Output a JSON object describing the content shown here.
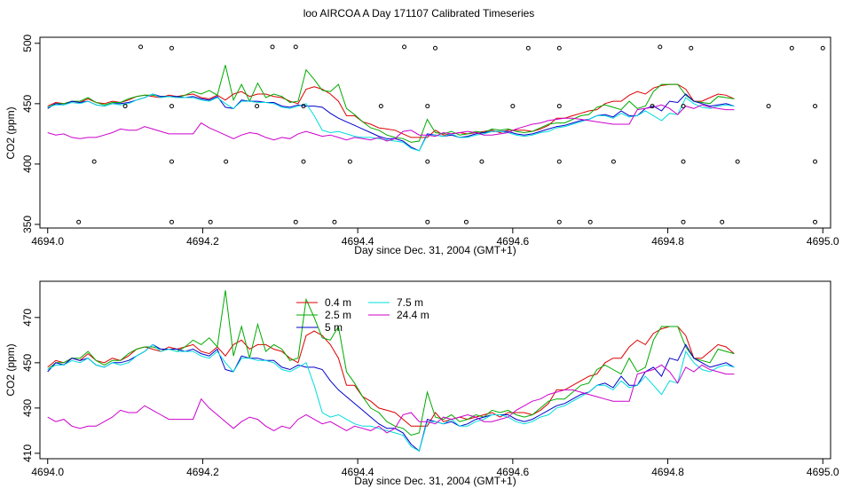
{
  "title": "loo AIRCOA A  Day 171107  Calibrated Timeseries",
  "chart_data": [
    {
      "type": "line",
      "panel": "top",
      "xlabel": "Day since Dec. 31, 2004 (GMT+1)",
      "ylabel": "CO2 (ppm)",
      "xlim": [
        4693.99,
        4695.01
      ],
      "ylim": [
        347,
        505
      ],
      "xticks": [
        4694.0,
        4694.2,
        4694.4,
        4694.6,
        4694.8,
        4695.0
      ],
      "xtick_labels": [
        "4694.0",
        "4694.2",
        "4694.4",
        "4694.6",
        "4694.8",
        "4695.0"
      ],
      "yticks": [
        350,
        400,
        450,
        500
      ],
      "ytick_labels": [
        "350",
        "400",
        "450",
        "500"
      ],
      "x_start": 4694.0,
      "x_step": 0.01042,
      "colors": {
        "0.4 m": "#dd0000",
        "2.5 m": "#00aa00",
        "5 m": "#0000cc",
        "7.5 m": "#00dddd",
        "24.4 m": "#cc00cc"
      },
      "series": [
        {
          "name": "0.4 m",
          "values": [
            448,
            451,
            450,
            452,
            451,
            454,
            451,
            450,
            452,
            451,
            453,
            456,
            457,
            456,
            455,
            457,
            456,
            457,
            458,
            455,
            454,
            457,
            453,
            458,
            460,
            456,
            458,
            458,
            456,
            455,
            452,
            450,
            462,
            464,
            462,
            458,
            452,
            440,
            440,
            435,
            433,
            430,
            429,
            428,
            425,
            422,
            422,
            422,
            428,
            424,
            425,
            426,
            425,
            426,
            427,
            428,
            426,
            428,
            428,
            428,
            427,
            429,
            432,
            438,
            438,
            440,
            442,
            444,
            445,
            450,
            452,
            452,
            457,
            460,
            458,
            463,
            465,
            466,
            466,
            462,
            452,
            452,
            455,
            458,
            457,
            454
          ]
        },
        {
          "name": "2.5 m",
          "values": [
            447,
            450,
            450,
            452,
            452,
            455,
            451,
            449,
            451,
            451,
            454,
            456,
            457,
            457,
            456,
            456,
            455,
            457,
            460,
            458,
            461,
            457,
            482,
            453,
            466,
            452,
            467,
            455,
            458,
            456,
            451,
            452,
            478,
            470,
            461,
            460,
            466,
            446,
            441,
            435,
            430,
            428,
            424,
            422,
            421,
            418,
            419,
            437,
            426,
            425,
            427,
            424,
            425,
            427,
            426,
            429,
            428,
            429,
            427,
            426,
            427,
            430,
            433,
            434,
            434,
            437,
            440,
            441,
            447,
            449,
            447,
            445,
            452,
            446,
            448,
            460,
            466,
            466,
            466,
            457,
            452,
            451,
            450,
            456,
            455,
            454
          ]
        },
        {
          "name": "5 m",
          "values": [
            446,
            450,
            449,
            452,
            451,
            452,
            449,
            448,
            450,
            450,
            451,
            453,
            455,
            458,
            456,
            456,
            456,
            455,
            456,
            454,
            453,
            456,
            447,
            446,
            453,
            452,
            452,
            451,
            451,
            448,
            447,
            449,
            448,
            448,
            447,
            442,
            438,
            435,
            432,
            429,
            426,
            423,
            421,
            421,
            419,
            414,
            411,
            425,
            424,
            423,
            424,
            422,
            423,
            425,
            426,
            427,
            427,
            427,
            425,
            424,
            425,
            427,
            429,
            431,
            432,
            434,
            436,
            437,
            440,
            441,
            439,
            444,
            440,
            440,
            446,
            448,
            444,
            452,
            451,
            458,
            452,
            450,
            448,
            449,
            450,
            448
          ]
        },
        {
          "name": "7.5 m",
          "values": [
            447,
            449,
            449,
            451,
            450,
            452,
            449,
            448,
            450,
            449,
            450,
            453,
            455,
            458,
            455,
            456,
            455,
            455,
            455,
            453,
            452,
            455,
            450,
            446,
            452,
            452,
            451,
            451,
            450,
            447,
            446,
            448,
            450,
            440,
            428,
            426,
            427,
            425,
            423,
            422,
            422,
            421,
            420,
            419,
            418,
            413,
            411,
            424,
            424,
            423,
            425,
            422,
            422,
            424,
            425,
            427,
            427,
            426,
            424,
            423,
            424,
            426,
            427,
            430,
            431,
            433,
            435,
            437,
            440,
            440,
            438,
            442,
            439,
            440,
            444,
            440,
            436,
            442,
            441,
            455,
            450,
            447,
            446,
            448,
            449,
            448
          ]
        },
        {
          "name": "24.4 m",
          "values": [
            426,
            424,
            425,
            422,
            421,
            422,
            422,
            424,
            426,
            429,
            428,
            428,
            431,
            429,
            427,
            425,
            425,
            425,
            425,
            434,
            430,
            427,
            424,
            421,
            424,
            426,
            425,
            422,
            420,
            422,
            421,
            425,
            427,
            425,
            423,
            424,
            422,
            420,
            422,
            421,
            420,
            422,
            419,
            421,
            427,
            428,
            424,
            424,
            423,
            426,
            425,
            426,
            427,
            426,
            424,
            424,
            425,
            426,
            429,
            431,
            433,
            434,
            436,
            437,
            438,
            438,
            437,
            436,
            435,
            434,
            433,
            433,
            433,
            445,
            446,
            447,
            449,
            446,
            441,
            448,
            446,
            449,
            447,
            446,
            445,
            445
          ]
        }
      ],
      "points": {
        "x": [
          4694.04,
          4694.06,
          4694.1,
          4694.12,
          4694.16,
          4694.16,
          4694.16,
          4694.16,
          4694.21,
          4694.23,
          4694.27,
          4694.29,
          4694.32,
          4694.32,
          4694.33,
          4694.33,
          4694.37,
          4694.39,
          4694.43,
          4694.46,
          4694.49,
          4694.49,
          4694.49,
          4694.5,
          4694.54,
          4694.56,
          4694.6,
          4694.62,
          4694.66,
          4694.66,
          4694.66,
          4694.66,
          4694.7,
          4694.73,
          4694.78,
          4694.79,
          4694.82,
          4694.82,
          4694.82,
          4694.83,
          4694.87,
          4694.89,
          4694.93,
          4694.96,
          4694.99,
          4694.99,
          4694.99,
          4695.0
        ],
        "y": [
          352,
          402,
          448,
          497,
          352,
          402,
          448,
          496,
          352,
          402,
          448,
          497,
          352,
          497,
          402,
          448,
          352,
          402,
          448,
          497,
          352,
          402,
          448,
          496,
          352,
          402,
          448,
          496,
          352,
          402,
          448,
          496,
          352,
          402,
          448,
          497,
          352,
          402,
          448,
          496,
          352,
          402,
          448,
          496,
          352,
          402,
          448,
          496
        ]
      }
    },
    {
      "type": "line",
      "panel": "bottom",
      "xlabel": "Day since Dec. 31, 2004 (GMT+1)",
      "ylabel": "CO2 (ppm)",
      "xlim": [
        4693.99,
        4695.01
      ],
      "ylim": [
        407.6,
        486
      ],
      "xticks": [
        4694.0,
        4694.2,
        4694.4,
        4694.6,
        4694.8,
        4695.0
      ],
      "xtick_labels": [
        "4694.0",
        "4694.2",
        "4694.4",
        "4694.6",
        "4694.8",
        "4695.0"
      ],
      "yticks": [
        410,
        430,
        450,
        470
      ],
      "ytick_labels": [
        "410",
        "430",
        "450",
        "470"
      ],
      "x_start": 4694.0,
      "x_step": 0.01042,
      "legend": {
        "placement": "top-center",
        "entries": [
          {
            "name": "0.4 m",
            "color": "#dd0000"
          },
          {
            "name": "2.5 m",
            "color": "#00aa00"
          },
          {
            "name": "5 m",
            "color": "#0000cc"
          },
          {
            "name": "7.5 m",
            "color": "#00dddd"
          },
          {
            "name": "24.4 m",
            "color": "#cc00cc"
          }
        ]
      },
      "series": [
        {
          "name": "0.4 m",
          "values": [
            448,
            451,
            450,
            452,
            451,
            454,
            451,
            450,
            452,
            451,
            453,
            456,
            457,
            456,
            455,
            457,
            456,
            457,
            458,
            455,
            454,
            457,
            453,
            458,
            460,
            456,
            458,
            458,
            456,
            455,
            452,
            450,
            462,
            464,
            462,
            458,
            452,
            440,
            440,
            435,
            433,
            430,
            429,
            428,
            425,
            422,
            422,
            422,
            428,
            424,
            425,
            426,
            425,
            426,
            427,
            428,
            426,
            428,
            428,
            428,
            427,
            429,
            432,
            438,
            438,
            440,
            442,
            444,
            445,
            450,
            452,
            452,
            457,
            460,
            458,
            463,
            465,
            466,
            466,
            462,
            452,
            452,
            455,
            458,
            457,
            454
          ]
        },
        {
          "name": "2.5 m",
          "values": [
            447,
            450,
            450,
            452,
            452,
            455,
            451,
            449,
            451,
            451,
            454,
            456,
            457,
            457,
            456,
            456,
            455,
            457,
            460,
            458,
            461,
            457,
            482,
            453,
            466,
            452,
            467,
            455,
            458,
            456,
            451,
            452,
            478,
            470,
            461,
            460,
            466,
            446,
            441,
            435,
            430,
            428,
            424,
            422,
            421,
            418,
            419,
            437,
            426,
            425,
            427,
            424,
            425,
            427,
            426,
            429,
            428,
            429,
            427,
            426,
            427,
            430,
            433,
            434,
            434,
            437,
            440,
            441,
            447,
            449,
            447,
            445,
            452,
            446,
            448,
            460,
            466,
            466,
            466,
            457,
            452,
            451,
            450,
            456,
            455,
            454
          ]
        },
        {
          "name": "5 m",
          "values": [
            446,
            450,
            449,
            452,
            451,
            452,
            449,
            448,
            450,
            450,
            451,
            453,
            455,
            458,
            456,
            456,
            456,
            455,
            456,
            454,
            453,
            456,
            447,
            446,
            453,
            452,
            452,
            451,
            451,
            448,
            447,
            449,
            448,
            448,
            447,
            442,
            438,
            435,
            432,
            429,
            426,
            423,
            421,
            421,
            419,
            414,
            411,
            425,
            424,
            423,
            424,
            422,
            423,
            425,
            426,
            427,
            427,
            427,
            425,
            424,
            425,
            427,
            429,
            431,
            432,
            434,
            436,
            437,
            440,
            441,
            439,
            444,
            440,
            440,
            446,
            448,
            444,
            452,
            451,
            458,
            452,
            450,
            448,
            449,
            450,
            448
          ]
        },
        {
          "name": "7.5 m",
          "values": [
            447,
            449,
            449,
            451,
            450,
            452,
            449,
            448,
            450,
            449,
            450,
            453,
            455,
            458,
            455,
            456,
            455,
            455,
            455,
            453,
            452,
            455,
            450,
            446,
            452,
            452,
            451,
            451,
            450,
            447,
            446,
            448,
            450,
            440,
            428,
            426,
            427,
            425,
            423,
            422,
            422,
            421,
            420,
            419,
            418,
            413,
            411,
            424,
            424,
            423,
            425,
            422,
            422,
            424,
            425,
            427,
            427,
            426,
            424,
            423,
            424,
            426,
            427,
            430,
            431,
            433,
            435,
            437,
            440,
            440,
            438,
            442,
            439,
            440,
            444,
            440,
            436,
            442,
            441,
            455,
            450,
            447,
            446,
            448,
            449,
            448
          ]
        },
        {
          "name": "24.4 m",
          "values": [
            426,
            424,
            425,
            422,
            421,
            422,
            422,
            424,
            426,
            429,
            428,
            428,
            431,
            429,
            427,
            425,
            425,
            425,
            425,
            434,
            430,
            427,
            424,
            421,
            424,
            426,
            425,
            422,
            420,
            422,
            421,
            425,
            427,
            425,
            423,
            424,
            422,
            420,
            422,
            421,
            420,
            422,
            419,
            421,
            427,
            428,
            424,
            424,
            423,
            426,
            425,
            426,
            427,
            426,
            424,
            424,
            425,
            426,
            429,
            431,
            433,
            434,
            436,
            437,
            438,
            438,
            437,
            436,
            435,
            434,
            433,
            433,
            433,
            445,
            446,
            447,
            449,
            446,
            441,
            448,
            446,
            449,
            447,
            446,
            445,
            445
          ]
        }
      ]
    }
  ]
}
